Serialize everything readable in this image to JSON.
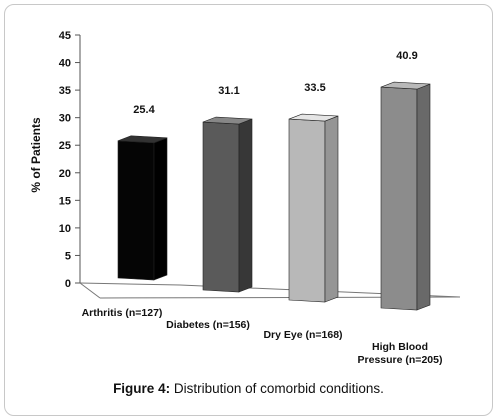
{
  "caption": {
    "prefix": "Figure 4:",
    "text": " Distribution of comorbid conditions."
  },
  "chart_data": {
    "type": "bar",
    "ylabel": "% of Patients",
    "xlabel": "",
    "ylim": [
      0,
      45
    ],
    "yticks": [
      "0",
      "5",
      "10",
      "15",
      "20",
      "25",
      "30",
      "35",
      "40",
      "45"
    ],
    "grid": false,
    "categories": [
      [
        "Arthritis (n=127)"
      ],
      [
        "Diabetes (n=156)"
      ],
      [
        "Dry Eye (n=168)"
      ],
      [
        "High Blood",
        "Pressure (n=205)"
      ]
    ],
    "values": [
      25.4,
      31.1,
      33.5,
      40.9
    ],
    "data_labels": [
      "25.4",
      "31.1",
      "33.5",
      "40.9"
    ],
    "colors": [
      "#050505",
      "#5a5a5a",
      "#b8b8b8",
      "#8c8c8c"
    ]
  }
}
